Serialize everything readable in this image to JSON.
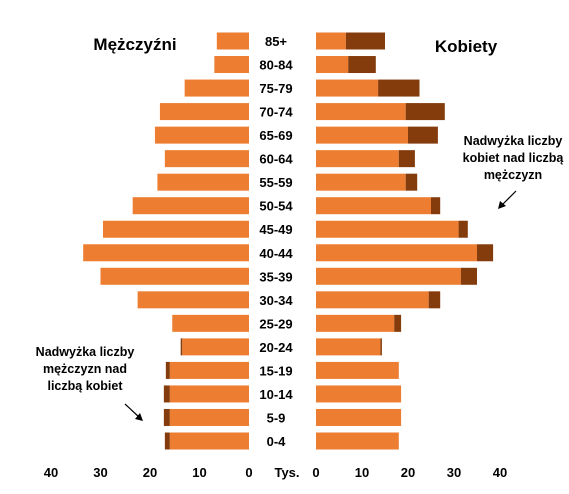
{
  "chart_data": {
    "type": "bar",
    "orientation": "horizontal",
    "layout": "population-pyramid",
    "categories": [
      "85+",
      "80-84",
      "75-79",
      "70-74",
      "65-69",
      "60-64",
      "55-59",
      "50-54",
      "45-49",
      "40-44",
      "35-39",
      "30-34",
      "25-29",
      "20-24",
      "15-19",
      "10-14",
      "5-9",
      "0-4"
    ],
    "left_group": {
      "title": "Mężczyźni",
      "values": [
        6.5,
        7,
        13,
        18,
        19,
        17,
        18.5,
        23.5,
        29.5,
        33.5,
        30,
        22.5,
        15.5,
        13.5,
        16,
        16,
        16,
        16
      ],
      "surplus": [
        0,
        0,
        0,
        0,
        0,
        0,
        0,
        0,
        0,
        0,
        0,
        0,
        0,
        0.3,
        0.8,
        1.2,
        1.2,
        1.0
      ]
    },
    "right_group": {
      "title": "Kobiety",
      "values": [
        6.5,
        7,
        13.5,
        19.5,
        20,
        18,
        19.5,
        25,
        31,
        35,
        31.5,
        24.5,
        17,
        14,
        18,
        18.5,
        18.5,
        18
      ],
      "surplus": [
        8.5,
        6,
        9,
        8.5,
        6.5,
        3.5,
        2.5,
        2,
        2,
        3.5,
        3.5,
        2.5,
        1.5,
        0.3,
        0,
        0,
        0,
        0
      ]
    },
    "left_axis": {
      "range": [
        0,
        40
      ],
      "ticks": [
        40,
        30,
        20,
        10,
        0
      ]
    },
    "right_axis": {
      "range": [
        0,
        40
      ],
      "ticks": [
        0,
        10,
        20,
        30,
        40
      ]
    },
    "unit_label": "Tys.",
    "colors": {
      "base": "#ED7D31",
      "surplus": "#843C0C"
    },
    "annotations": {
      "female_surplus": [
        "Nadwyżka liczby",
        "kobiet nad liczbą",
        "mężczyzn"
      ],
      "male_surplus": [
        "Nadwyżka liczby",
        "mężczyzn nad",
        "liczbą kobiet"
      ]
    }
  }
}
